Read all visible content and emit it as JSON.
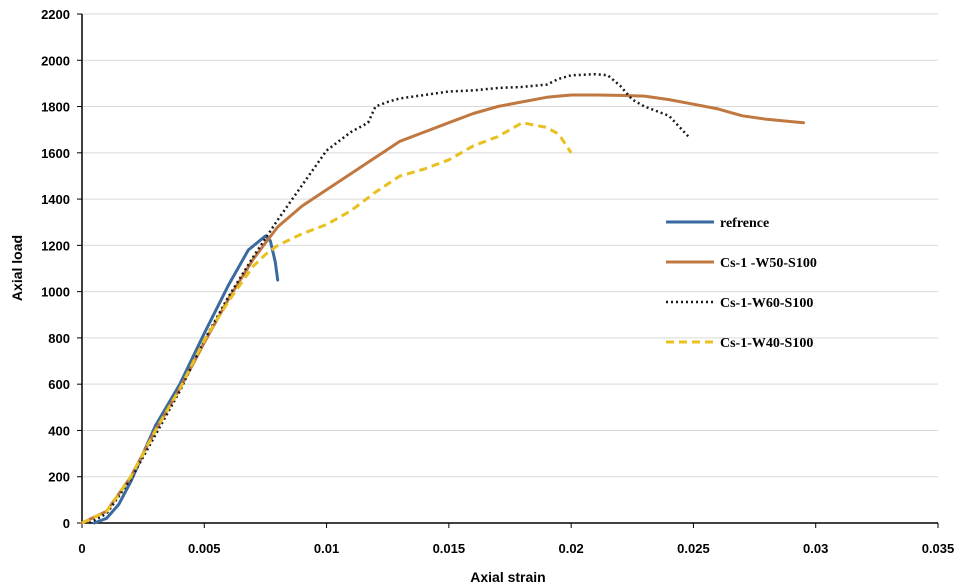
{
  "chart_data": {
    "type": "line",
    "xlabel": "Axial strain",
    "ylabel": "Axial load",
    "xlim": [
      0,
      0.035
    ],
    "ylim": [
      0,
      2200
    ],
    "x_ticks": [
      0,
      0.005,
      0.01,
      0.015,
      0.02,
      0.025,
      0.03,
      0.035
    ],
    "x_tick_labels": [
      "0",
      "0.005",
      "0.01",
      "0.015",
      "0.02",
      "0.025",
      "0.03",
      "0.035"
    ],
    "y_ticks": [
      0,
      200,
      400,
      600,
      800,
      1000,
      1200,
      1400,
      1600,
      1800,
      2000,
      2200
    ],
    "y_tick_labels": [
      "0",
      "200",
      "400",
      "600",
      "800",
      "1000",
      "1200",
      "1400",
      "1600",
      "1800",
      "2000",
      "2200"
    ],
    "grid": "horizontal",
    "legend_position": "right",
    "series": [
      {
        "name": "refrence",
        "color": "#3a6aa0",
        "dash": "solid",
        "points": [
          [
            0.0005,
            0
          ],
          [
            0.001,
            20
          ],
          [
            0.0015,
            80
          ],
          [
            0.002,
            180
          ],
          [
            0.0025,
            300
          ],
          [
            0.003,
            420
          ],
          [
            0.004,
            600
          ],
          [
            0.005,
            820
          ],
          [
            0.006,
            1030
          ],
          [
            0.0068,
            1180
          ],
          [
            0.0075,
            1240
          ],
          [
            0.0077,
            1220
          ],
          [
            0.0079,
            1130
          ],
          [
            0.008,
            1050
          ]
        ]
      },
      {
        "name": "Cs-1 -W50-S100",
        "color": "#c07840",
        "dash": "solid",
        "points": [
          [
            0,
            0
          ],
          [
            0.001,
            50
          ],
          [
            0.002,
            200
          ],
          [
            0.003,
            400
          ],
          [
            0.004,
            580
          ],
          [
            0.005,
            780
          ],
          [
            0.006,
            970
          ],
          [
            0.007,
            1140
          ],
          [
            0.0075,
            1210
          ],
          [
            0.008,
            1280
          ],
          [
            0.009,
            1370
          ],
          [
            0.01,
            1440
          ],
          [
            0.011,
            1510
          ],
          [
            0.012,
            1580
          ],
          [
            0.013,
            1650
          ],
          [
            0.014,
            1690
          ],
          [
            0.015,
            1730
          ],
          [
            0.016,
            1770
          ],
          [
            0.017,
            1800
          ],
          [
            0.018,
            1820
          ],
          [
            0.019,
            1840
          ],
          [
            0.02,
            1850
          ],
          [
            0.021,
            1850
          ],
          [
            0.022,
            1848
          ],
          [
            0.023,
            1845
          ],
          [
            0.024,
            1830
          ],
          [
            0.025,
            1810
          ],
          [
            0.026,
            1790
          ],
          [
            0.027,
            1760
          ],
          [
            0.028,
            1745
          ],
          [
            0.029,
            1735
          ],
          [
            0.0295,
            1730
          ]
        ]
      },
      {
        "name": "Cs-1-W60-S100",
        "color": "#1a1a1a",
        "dash": "dotted",
        "points": [
          [
            0.0003,
            0
          ],
          [
            0.001,
            40
          ],
          [
            0.002,
            190
          ],
          [
            0.003,
            380
          ],
          [
            0.004,
            570
          ],
          [
            0.005,
            790
          ],
          [
            0.006,
            980
          ],
          [
            0.007,
            1150
          ],
          [
            0.008,
            1310
          ],
          [
            0.009,
            1460
          ],
          [
            0.01,
            1610
          ],
          [
            0.011,
            1690
          ],
          [
            0.0117,
            1730
          ],
          [
            0.012,
            1800
          ],
          [
            0.0125,
            1820
          ],
          [
            0.013,
            1835
          ],
          [
            0.014,
            1850
          ],
          [
            0.015,
            1865
          ],
          [
            0.016,
            1870
          ],
          [
            0.017,
            1880
          ],
          [
            0.018,
            1885
          ],
          [
            0.019,
            1895
          ],
          [
            0.0195,
            1920
          ],
          [
            0.02,
            1935
          ],
          [
            0.021,
            1940
          ],
          [
            0.0215,
            1935
          ],
          [
            0.022,
            1890
          ],
          [
            0.0225,
            1830
          ],
          [
            0.023,
            1800
          ],
          [
            0.024,
            1760
          ],
          [
            0.0248,
            1670
          ]
        ]
      },
      {
        "name": "Cs-1-W40-S100",
        "color": "#e8c020",
        "dash": "dashed",
        "points": [
          [
            0,
            0
          ],
          [
            0.001,
            50
          ],
          [
            0.002,
            200
          ],
          [
            0.003,
            400
          ],
          [
            0.004,
            580
          ],
          [
            0.005,
            790
          ],
          [
            0.006,
            960
          ],
          [
            0.007,
            1110
          ],
          [
            0.0075,
            1160
          ],
          [
            0.008,
            1200
          ],
          [
            0.009,
            1250
          ],
          [
            0.01,
            1290
          ],
          [
            0.011,
            1350
          ],
          [
            0.012,
            1430
          ],
          [
            0.013,
            1500
          ],
          [
            0.014,
            1530
          ],
          [
            0.015,
            1570
          ],
          [
            0.016,
            1630
          ],
          [
            0.017,
            1670
          ],
          [
            0.0175,
            1700
          ],
          [
            0.018,
            1730
          ],
          [
            0.0185,
            1720
          ],
          [
            0.019,
            1710
          ],
          [
            0.0195,
            1680
          ],
          [
            0.02,
            1600
          ]
        ]
      }
    ]
  }
}
